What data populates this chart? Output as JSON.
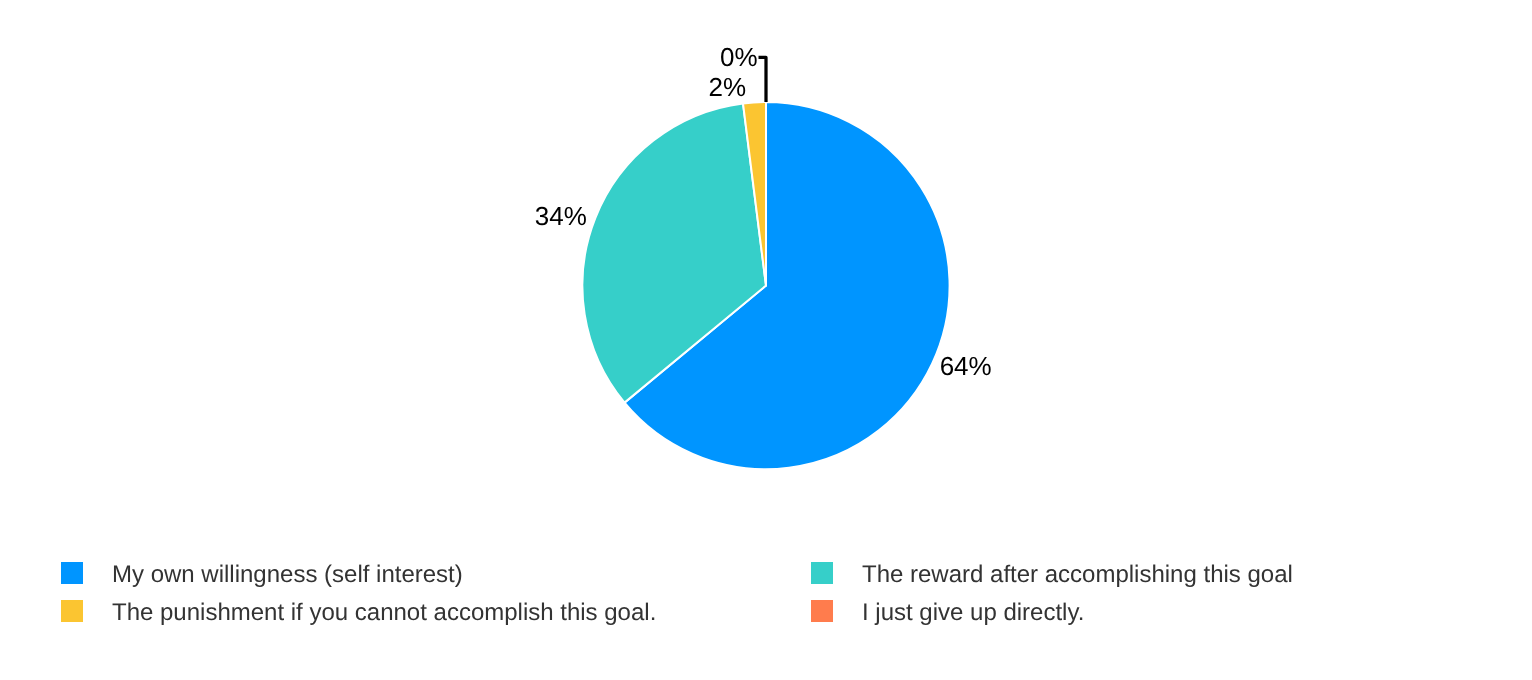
{
  "chart_data": {
    "type": "pie",
    "categories": [
      "My own willingness (self interest)",
      "The reward after accomplishing this goal",
      "The punishment if you cannot accomplish this goal.",
      "I just give up directly."
    ],
    "values": [
      64,
      34,
      2,
      0
    ],
    "value_labels": [
      "64%",
      "34%",
      "2%",
      "0%"
    ],
    "colors": [
      "#0095ff",
      "#36cfc9",
      "#fbc531",
      "#ff7c4d"
    ],
    "legend": "bottom"
  }
}
